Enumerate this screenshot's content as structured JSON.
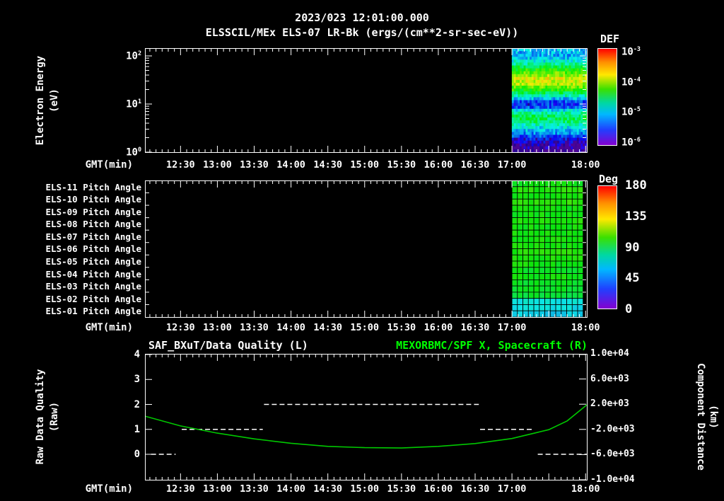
{
  "header": {
    "timestamp": "2023/023 12:01:00.000",
    "title": "ELSSCIL/MEx ELS-07 LR-Bk (ergs/(cm**2-sr-sec-eV))"
  },
  "axes": {
    "time_label": "GMT(min)",
    "time_start": "12:01",
    "time_end": "18:01",
    "time_ticks": [
      "12:30",
      "13:00",
      "13:30",
      "14:00",
      "14:30",
      "15:00",
      "15:30",
      "16:00",
      "16:30",
      "17:00",
      "18:00"
    ]
  },
  "panel1": {
    "ylabel": "Electron Energy",
    "ylabel_units": "(eV)",
    "ytick_labels": [
      "10^2",
      "10^1",
      "10^0"
    ],
    "colorbar_title": "DEF",
    "colorbar_labels": [
      "10^-3",
      "10^-4",
      "10^-5",
      "10^-6"
    ]
  },
  "panel2": {
    "row_labels": [
      "ELS-11 Pitch Angle",
      "ELS-10 Pitch Angle",
      "ELS-09 Pitch Angle",
      "ELS-08 Pitch Angle",
      "ELS-07 Pitch Angle",
      "ELS-06 Pitch Angle",
      "ELS-05 Pitch Angle",
      "ELS-04 Pitch Angle",
      "ELS-03 Pitch Angle",
      "ELS-02 Pitch Angle",
      "ELS-01 Pitch Angle"
    ],
    "colorbar_title": "Deg",
    "colorbar_labels": [
      "180",
      "135",
      "90",
      "45",
      "0"
    ]
  },
  "panel3": {
    "left_title": "SAF_BXuT/Data Quality (L)",
    "right_title": "MEXORBMC/SPF X, Spacecraft (R)",
    "left_ylabel": "Raw Data Quality",
    "left_ylabel_units": "(Raw)",
    "right_ylabel": "Component Distance",
    "right_ylabel_units": "(km)",
    "left_ticks": [
      "4",
      "3",
      "2",
      "1",
      "0"
    ],
    "right_ticks": [
      "1.0e+04",
      "6.0e+03",
      "2.0e+03",
      "-2.0e+03",
      "-6.0e+03",
      "-1.0e+04"
    ]
  },
  "colors": {
    "background": "#000000",
    "foreground": "#ffffff",
    "accent_green": "#00ff00",
    "curve_green": "#00c800"
  },
  "chart_data": [
    {
      "type": "heatmap",
      "name": "electron_energy_spectrogram",
      "title": "ELSSCIL/MEx ELS-07 LR-Bk",
      "units": "ergs/(cm**2-sr-sec-eV)",
      "xlabel": "GMT(min)",
      "x_range": [
        "12:01",
        "18:01"
      ],
      "data_time_range": [
        "17:00",
        "18:01"
      ],
      "ylabel": "Electron Energy (eV)",
      "y_scale": "log",
      "y_range_ev": [
        1,
        145
      ],
      "color_range_log10": [
        -6,
        -3
      ],
      "colorbar_label": "DEF",
      "flux_profile": [
        {
          "frac_from_top": 0.0,
          "log10_flux": -5.15
        },
        {
          "frac_from_top": 0.07,
          "log10_flux": -5.2
        },
        {
          "frac_from_top": 0.12,
          "log10_flux": -4.9
        },
        {
          "frac_from_top": 0.18,
          "log10_flux": -4.45
        },
        {
          "frac_from_top": 0.24,
          "log10_flux": -4.0
        },
        {
          "frac_from_top": 0.29,
          "log10_flux": -3.75
        },
        {
          "frac_from_top": 0.35,
          "log10_flux": -3.9
        },
        {
          "frac_from_top": 0.41,
          "log10_flux": -4.35
        },
        {
          "frac_from_top": 0.46,
          "log10_flux": -4.85
        },
        {
          "frac_from_top": 0.51,
          "log10_flux": -5.45
        },
        {
          "frac_from_top": 0.56,
          "log10_flux": -5.6
        },
        {
          "frac_from_top": 0.61,
          "log10_flux": -4.9
        },
        {
          "frac_from_top": 0.66,
          "log10_flux": -4.55
        },
        {
          "frac_from_top": 0.71,
          "log10_flux": -4.6
        },
        {
          "frac_from_top": 0.76,
          "log10_flux": -4.95
        },
        {
          "frac_from_top": 0.82,
          "log10_flux": -5.25
        },
        {
          "frac_from_top": 0.87,
          "log10_flux": -5.55
        },
        {
          "frac_from_top": 0.92,
          "log10_flux": -5.85
        },
        {
          "frac_from_top": 1.0,
          "log10_flux": -6.0
        }
      ]
    },
    {
      "type": "heatmap",
      "name": "pitch_angle_panels",
      "rows": [
        "ELS-11",
        "ELS-10",
        "ELS-09",
        "ELS-08",
        "ELS-07",
        "ELS-06",
        "ELS-05",
        "ELS-04",
        "ELS-03",
        "ELS-02",
        "ELS-01"
      ],
      "data_time_range": [
        "17:00",
        "17:58"
      ],
      "color_range_deg": [
        0,
        180
      ],
      "colorbar_label": "Deg",
      "row_values_deg": [
        [
          100,
          104
        ],
        [
          102,
          106
        ],
        [
          100,
          100
        ],
        [
          104,
          100
        ],
        [
          100,
          102
        ],
        [
          100,
          104
        ],
        [
          102,
          100
        ],
        [
          96,
          100
        ],
        [
          95,
          95
        ],
        [
          92,
          62
        ],
        [
          60,
          55
        ]
      ]
    },
    {
      "type": "line",
      "name": "data_quality_and_spacecraft_x",
      "xlabel": "GMT(min)",
      "x_range": [
        "12:01",
        "18:01"
      ],
      "left_axis": {
        "label": "Raw Data Quality (Raw)",
        "range": [
          -1,
          4
        ],
        "ticks": [
          4,
          3,
          2,
          1,
          0
        ]
      },
      "right_axis": {
        "label": "Component Distance (km)",
        "range": [
          -10000,
          10000
        ],
        "ticks": [
          10000,
          6000,
          2000,
          -2000,
          -6000,
          -10000
        ]
      },
      "series": [
        {
          "name": "SAF_BXuT/Data Quality (L)",
          "axis": "left",
          "style": "dashed",
          "color": "#ffffff",
          "segments": [
            {
              "start": "12:06",
              "end": "12:26",
              "value": 0
            },
            {
              "start": "12:31",
              "end": "13:37",
              "value": 1
            },
            {
              "start": "13:38",
              "end": "16:33",
              "value": 2
            },
            {
              "start": "16:34",
              "end": "17:18",
              "value": 1
            },
            {
              "start": "17:21",
              "end": "18:01",
              "value": 0
            }
          ]
        },
        {
          "name": "MEXORBMC/SPF X, Spacecraft (R)",
          "axis": "right",
          "style": "solid",
          "color": "#00c800",
          "points": [
            {
              "t": "12:01",
              "km": 100
            },
            {
              "t": "12:30",
              "km": -1450
            },
            {
              "t": "13:00",
              "km": -2600
            },
            {
              "t": "13:30",
              "km": -3500
            },
            {
              "t": "14:00",
              "km": -4200
            },
            {
              "t": "14:30",
              "km": -4700
            },
            {
              "t": "15:00",
              "km": -4900
            },
            {
              "t": "15:30",
              "km": -4950
            },
            {
              "t": "16:00",
              "km": -4700
            },
            {
              "t": "16:30",
              "km": -4250
            },
            {
              "t": "17:00",
              "km": -3450
            },
            {
              "t": "17:30",
              "km": -2050
            },
            {
              "t": "17:45",
              "km": -650
            },
            {
              "t": "18:01",
              "km": 1900
            }
          ]
        }
      ]
    }
  ]
}
